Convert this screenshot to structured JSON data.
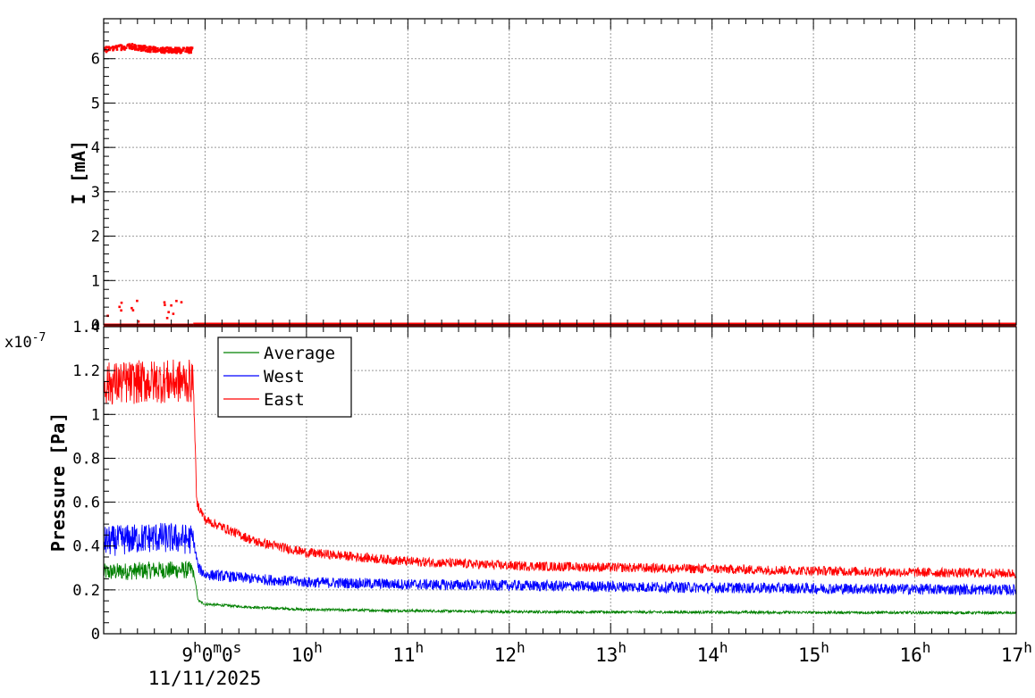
{
  "chart_data": [
    {
      "type": "scatter",
      "title": "",
      "ylabel": "I [mA]",
      "ylim": [
        0,
        6.9
      ],
      "yticks": [
        0,
        1,
        2,
        3,
        4,
        5,
        6
      ],
      "ytick_labels": [
        "0",
        "1",
        "2",
        "3",
        "4",
        "5",
        "6"
      ],
      "xlim_hours": [
        8.0,
        17.0
      ],
      "grid": true,
      "series": [
        {
          "color": "#ff0000",
          "description_points": [
            {
              "x": "08:00",
              "y": 6.2
            },
            {
              "x": "08:15",
              "y": 6.28
            },
            {
              "x": "08:30",
              "y": 6.2
            },
            {
              "x": "08:45",
              "y": 6.18
            },
            {
              "x": "08:53",
              "y": 6.2
            },
            {
              "x": "08:55",
              "y": 0.0
            },
            {
              "x": "12:00",
              "y": 0.0
            },
            {
              "x": "17:00",
              "y": 0.0
            }
          ]
        }
      ]
    },
    {
      "type": "line",
      "title": "",
      "ylabel": "Pressure [Pa]",
      "yscale_label": "x10-7",
      "ylim": [
        0,
        1.4
      ],
      "yticks": [
        0,
        0.2,
        0.4,
        0.6,
        0.8,
        1,
        1.2,
        1.4
      ],
      "ytick_labels": [
        "0",
        "0.2",
        "0.4",
        "0.6",
        "0.8",
        "1",
        "1.2",
        "1.4"
      ],
      "xlim_hours": [
        8.0,
        17.0
      ],
      "grid": true,
      "legend_position": "top-left",
      "series": [
        {
          "name": "Average",
          "color": "#008000",
          "points": [
            {
              "x": "08:00",
              "y": 0.28
            },
            {
              "x": "08:30",
              "y": 0.29
            },
            {
              "x": "08:53",
              "y": 0.29
            },
            {
              "x": "08:56",
              "y": 0.15
            },
            {
              "x": "09:00",
              "y": 0.135
            },
            {
              "x": "09:30",
              "y": 0.12
            },
            {
              "x": "10:00",
              "y": 0.11
            },
            {
              "x": "11:00",
              "y": 0.105
            },
            {
              "x": "12:00",
              "y": 0.1
            },
            {
              "x": "14:00",
              "y": 0.098
            },
            {
              "x": "17:00",
              "y": 0.095
            }
          ]
        },
        {
          "name": "West",
          "color": "#0000ff",
          "points": [
            {
              "x": "08:00",
              "y": 0.42
            },
            {
              "x": "08:30",
              "y": 0.44
            },
            {
              "x": "08:53",
              "y": 0.43
            },
            {
              "x": "08:56",
              "y": 0.3
            },
            {
              "x": "09:00",
              "y": 0.27
            },
            {
              "x": "09:30",
              "y": 0.25
            },
            {
              "x": "10:00",
              "y": 0.235
            },
            {
              "x": "11:00",
              "y": 0.225
            },
            {
              "x": "12:00",
              "y": 0.22
            },
            {
              "x": "14:00",
              "y": 0.21
            },
            {
              "x": "17:00",
              "y": 0.2
            }
          ]
        },
        {
          "name": "East",
          "color": "#ff0000",
          "points": [
            {
              "x": "08:00",
              "y": 1.14
            },
            {
              "x": "08:30",
              "y": 1.15
            },
            {
              "x": "08:53",
              "y": 1.15
            },
            {
              "x": "08:54",
              "y": 0.9
            },
            {
              "x": "08:55",
              "y": 0.6
            },
            {
              "x": "09:00",
              "y": 0.52
            },
            {
              "x": "09:30",
              "y": 0.42
            },
            {
              "x": "10:00",
              "y": 0.37
            },
            {
              "x": "11:00",
              "y": 0.33
            },
            {
              "x": "12:00",
              "y": 0.31
            },
            {
              "x": "14:00",
              "y": 0.295
            },
            {
              "x": "16:00",
              "y": 0.28
            },
            {
              "x": "17:00",
              "y": 0.275
            }
          ]
        }
      ]
    }
  ],
  "time_axis": {
    "labels": [
      {
        "hour": 9,
        "text": "9",
        "sup": "h",
        "extra": "0m0s"
      },
      {
        "hour": 10,
        "text": "10",
        "sup": "h",
        "extra": ""
      },
      {
        "hour": 11,
        "text": "11",
        "sup": "h",
        "extra": ""
      },
      {
        "hour": 12,
        "text": "12",
        "sup": "h",
        "extra": ""
      },
      {
        "hour": 13,
        "text": "13",
        "sup": "h",
        "extra": ""
      },
      {
        "hour": 14,
        "text": "14",
        "sup": "h",
        "extra": ""
      },
      {
        "hour": 15,
        "text": "15",
        "sup": "h",
        "extra": ""
      },
      {
        "hour": 16,
        "text": "16",
        "sup": "h",
        "extra": ""
      },
      {
        "hour": 17,
        "text": "17",
        "sup": "h",
        "extra": ""
      }
    ],
    "date_label": "11/11/2025"
  }
}
